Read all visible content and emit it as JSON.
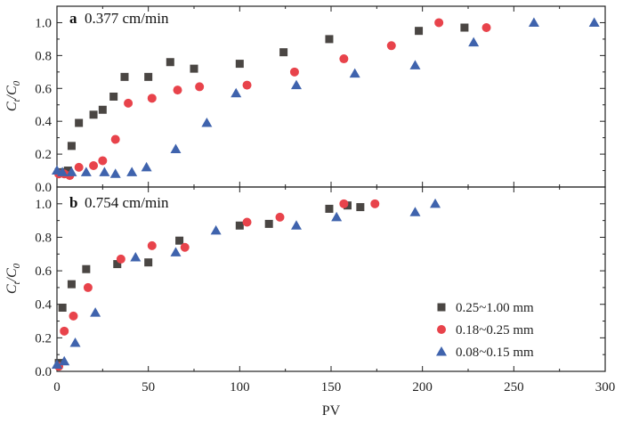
{
  "colors": {
    "series1": "#4a4643",
    "series2": "#e8434b",
    "series3": "#3f63ad"
  },
  "chart_data": [
    {
      "type": "scatter",
      "panel_letter": "a",
      "panel_rate": "0.377 cm/min",
      "xlabel": "PV",
      "ylabel": {
        "base": "C",
        "sub1": "t",
        "mid": "/C",
        "sub2": "0"
      },
      "xlim": [
        0,
        300
      ],
      "ylim": [
        0,
        1.1
      ],
      "xticks": [
        "0",
        "50",
        "100",
        "150",
        "200",
        "250",
        "300"
      ],
      "yticks": [
        "0.0",
        "0.2",
        "0.4",
        "0.6",
        "0.8",
        "1.0"
      ],
      "series": [
        {
          "name": "0.25~1.00 mm",
          "marker": "square",
          "color": "#4a4643",
          "x": [
            1,
            4,
            6,
            8,
            12,
            20,
            25,
            31,
            37,
            50,
            62,
            75,
            100,
            124,
            149,
            198,
            223
          ],
          "y": [
            0.09,
            0.09,
            0.1,
            0.25,
            0.39,
            0.44,
            0.47,
            0.55,
            0.67,
            0.67,
            0.76,
            0.72,
            0.75,
            0.82,
            0.9,
            0.95,
            0.97
          ]
        },
        {
          "name": "0.18~0.25 mm",
          "marker": "circle",
          "color": "#e8434b",
          "x": [
            1,
            4,
            7,
            12,
            20,
            25,
            32,
            39,
            52,
            66,
            78,
            104,
            130,
            157,
            183,
            209,
            235
          ],
          "y": [
            0.08,
            0.08,
            0.07,
            0.12,
            0.13,
            0.16,
            0.29,
            0.51,
            0.54,
            0.59,
            0.61,
            0.62,
            0.7,
            0.78,
            0.86,
            1.0,
            0.97
          ]
        },
        {
          "name": "0.08~0.15 mm",
          "marker": "triangle",
          "color": "#3f63ad",
          "x": [
            0,
            3,
            8,
            16,
            26,
            32,
            41,
            49,
            65,
            82,
            98,
            131,
            163,
            196,
            228,
            261,
            294
          ],
          "y": [
            0.1,
            0.09,
            0.09,
            0.09,
            0.09,
            0.08,
            0.09,
            0.12,
            0.23,
            0.39,
            0.57,
            0.62,
            0.69,
            0.74,
            0.88,
            1.0,
            1.0
          ]
        }
      ]
    },
    {
      "type": "scatter",
      "panel_letter": "b",
      "panel_rate": "0.754 cm/min",
      "xlabel": "PV",
      "ylabel": {
        "base": "C",
        "sub1": "t",
        "mid": "/C",
        "sub2": "0"
      },
      "xlim": [
        0,
        300
      ],
      "ylim": [
        0,
        1.1
      ],
      "xticks": [
        "0",
        "50",
        "100",
        "150",
        "200",
        "250",
        "300"
      ],
      "yticks": [
        "0.0",
        "0.2",
        "0.4",
        "0.6",
        "0.8",
        "1.0"
      ],
      "legend_position": "bottom-right",
      "series": [
        {
          "name": "0.25~1.00 mm",
          "marker": "square",
          "color": "#4a4643",
          "x": [
            1,
            3,
            8,
            16,
            33,
            50,
            67,
            100,
            116,
            149,
            159,
            166
          ],
          "y": [
            0.05,
            0.38,
            0.52,
            0.61,
            0.64,
            0.65,
            0.78,
            0.87,
            0.88,
            0.97,
            0.99,
            0.98
          ]
        },
        {
          "name": "0.18~0.25 mm",
          "marker": "circle",
          "color": "#e8434b",
          "x": [
            1,
            4,
            9,
            17,
            35,
            52,
            70,
            104,
            122,
            157,
            174
          ],
          "y": [
            0.03,
            0.24,
            0.33,
            0.5,
            0.67,
            0.75,
            0.74,
            0.89,
            0.92,
            1.0,
            1.0
          ]
        },
        {
          "name": "0.08~0.15 mm",
          "marker": "triangle",
          "color": "#3f63ad",
          "x": [
            0,
            4,
            10,
            21,
            43,
            65,
            87,
            131,
            153,
            196,
            207
          ],
          "y": [
            0.04,
            0.06,
            0.17,
            0.35,
            0.68,
            0.71,
            0.84,
            0.87,
            0.92,
            0.95,
            1.0
          ]
        }
      ]
    }
  ]
}
